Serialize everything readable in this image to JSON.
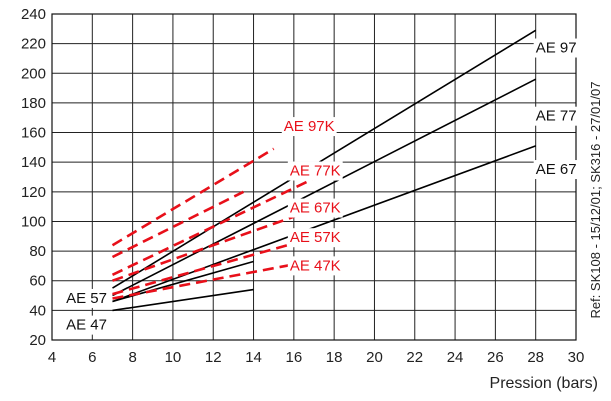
{
  "chart_data": {
    "type": "line",
    "title": "",
    "xlabel": "Pression (bars)",
    "ylabel": "",
    "xlim": [
      4,
      30
    ],
    "ylim": [
      20,
      240
    ],
    "xticks": [
      4,
      6,
      8,
      10,
      12,
      14,
      16,
      18,
      20,
      22,
      24,
      26,
      28,
      30
    ],
    "yticks": [
      20,
      40,
      60,
      80,
      100,
      120,
      140,
      160,
      180,
      200,
      220,
      240
    ],
    "grid": true,
    "reference_note": "Ref: SK108 - 15/12/01; SK316 - 27/01/07",
    "series": [
      {
        "name": "AE 97",
        "style": "solid",
        "color": "#000000",
        "x": [
          7,
          28
        ],
        "y": [
          55,
          229
        ]
      },
      {
        "name": "AE 77",
        "style": "solid",
        "color": "#000000",
        "x": [
          7,
          28
        ],
        "y": [
          50,
          196
        ]
      },
      {
        "name": "AE 67",
        "style": "solid",
        "color": "#000000",
        "x": [
          7,
          28
        ],
        "y": [
          46,
          151
        ]
      },
      {
        "name": "AE 57",
        "style": "solid",
        "color": "#000000",
        "x": [
          7,
          14
        ],
        "y": [
          46,
          73
        ]
      },
      {
        "name": "AE 47",
        "style": "solid",
        "color": "#000000",
        "x": [
          7,
          14
        ],
        "y": [
          40,
          54
        ]
      },
      {
        "name": "AE 97K",
        "style": "dashed",
        "color": "#e8101a",
        "x": [
          7,
          15
        ],
        "y": [
          84,
          149
        ]
      },
      {
        "name": "AE 77K",
        "style": "dashed",
        "color": "#e8101a",
        "x": [
          7,
          17
        ],
        "y": [
          64,
          129
        ]
      },
      {
        "name": "AE 67K",
        "style": "dashed",
        "color": "#e8101a",
        "x": [
          7,
          17
        ],
        "y": [
          60,
          108
        ]
      },
      {
        "name": "AE 57K",
        "style": "dashed",
        "color": "#e8101a",
        "x": [
          7,
          17
        ],
        "y": [
          51,
          89
        ]
      },
      {
        "name": "AE 47K",
        "style": "dashed",
        "color": "#e8101a",
        "x": [
          7,
          16
        ],
        "y": [
          48,
          71
        ]
      },
      {
        "name": "AE 97K (2)",
        "style": "dashed",
        "color": "#e8101a",
        "x": [
          7,
          13.5
        ],
        "y": [
          76,
          120
        ]
      }
    ],
    "annotations": [
      {
        "text": "AE 97",
        "color": "#000000",
        "x": 28,
        "y": 214
      },
      {
        "text": "AE 77",
        "color": "#000000",
        "x": 28,
        "y": 168
      },
      {
        "text": "AE 67",
        "color": "#000000",
        "x": 28,
        "y": 132
      },
      {
        "text": "AE 57",
        "color": "#000000",
        "x": 4.7,
        "y": 45
      },
      {
        "text": "AE 47",
        "color": "#000000",
        "x": 4.7,
        "y": 27
      },
      {
        "text": "AE 97K",
        "color": "#e8101a",
        "x": 15.5,
        "y": 161
      },
      {
        "text": "AE 77K",
        "color": "#e8101a",
        "x": 15.8,
        "y": 131
      },
      {
        "text": "AE 67K",
        "color": "#e8101a",
        "x": 15.8,
        "y": 106
      },
      {
        "text": "AE 57K",
        "color": "#e8101a",
        "x": 15.8,
        "y": 86
      },
      {
        "text": "AE 47K",
        "color": "#e8101a",
        "x": 15.8,
        "y": 67
      }
    ]
  }
}
